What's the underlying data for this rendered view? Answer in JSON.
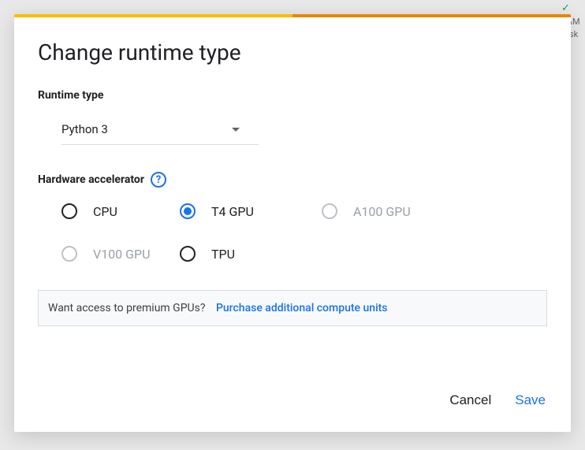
{
  "background": {
    "ram_label": "RAM",
    "disk_label": "Disk"
  },
  "dialog": {
    "title": "Change runtime type",
    "runtime_label": "Runtime type",
    "runtime_value": "Python 3",
    "accelerator_label": "Hardware accelerator",
    "accelerator_help": "?",
    "options": {
      "cpu": "CPU",
      "t4": "T4 GPU",
      "a100": "A100 GPU",
      "v100": "V100 GPU",
      "tpu": "TPU"
    },
    "promo": {
      "text": "Want access to premium GPUs?",
      "link": "Purchase additional compute units"
    },
    "actions": {
      "cancel": "Cancel",
      "save": "Save"
    }
  },
  "colors": {
    "primary": "#1a73e8",
    "accent_bar_start": "#fbbc04",
    "accent_bar_end": "#ea8600",
    "text": "#202124",
    "muted": "#9aa0a6",
    "border": "#dadce0",
    "promo_bg": "#f8f9fa"
  }
}
